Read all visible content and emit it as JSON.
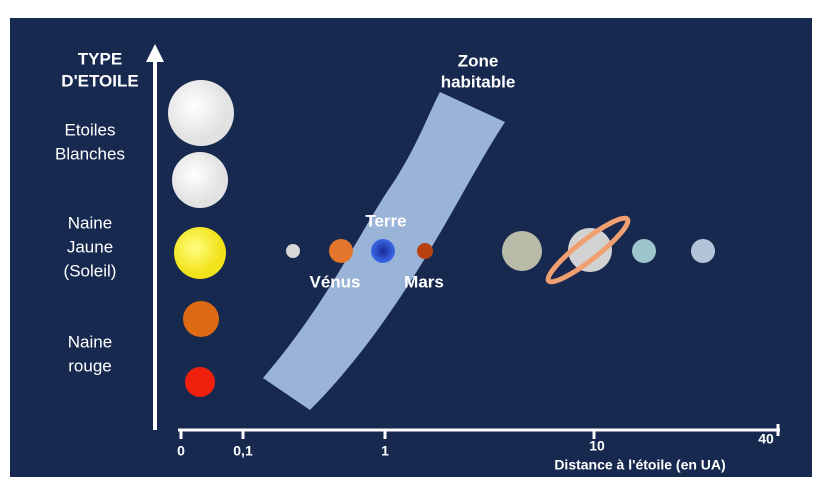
{
  "y_axis": {
    "title": [
      "TYPE",
      "D'ETOILE"
    ]
  },
  "star_types": [
    {
      "label": [
        "Etoiles",
        "Blanches"
      ]
    },
    {
      "label": [
        "Naine",
        "Jaune",
        "(Soleil)"
      ]
    },
    {
      "label": [
        "Naine",
        "rouge"
      ]
    }
  ],
  "zone": {
    "label": [
      "Zone",
      "habitable"
    ]
  },
  "planets": [
    {
      "label": "Terre"
    },
    {
      "label": "Vénus"
    },
    {
      "label": "Mars"
    }
  ],
  "x_axis": {
    "ticks": [
      "0",
      "0,1",
      "1",
      "10",
      "40"
    ],
    "title": "Distance à l'étoile (en UA)"
  }
}
